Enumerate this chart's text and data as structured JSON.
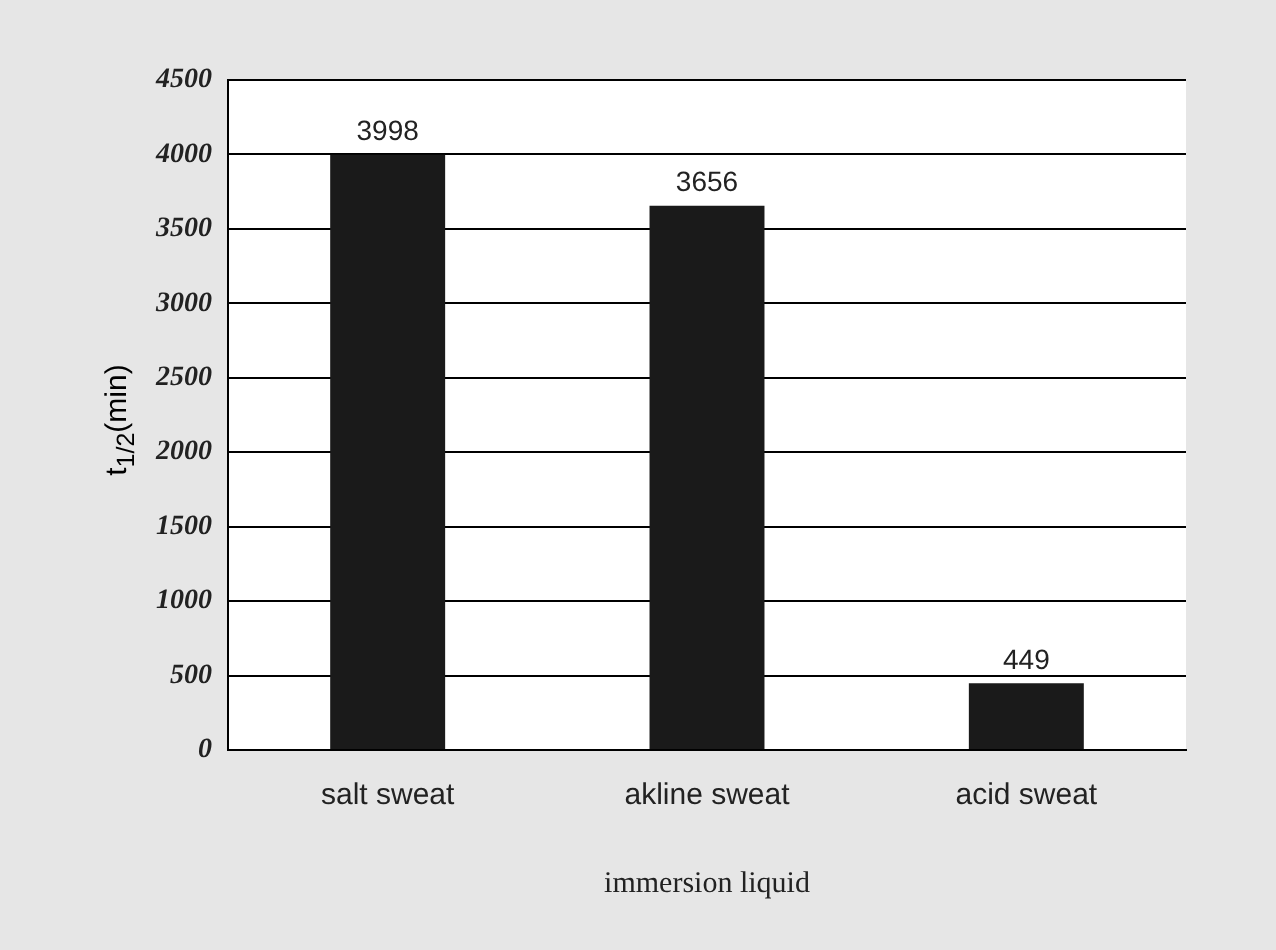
{
  "chart_data": {
    "type": "bar",
    "xlabel": "immersion liquid",
    "ylabel": "t$_{1/2}$(min)",
    "categories": [
      "salt sweat",
      "akline sweat",
      "acid sweat"
    ],
    "values": [
      3998,
      3656,
      449
    ],
    "color": "#1a1a1a",
    "ylim": [
      0,
      4500
    ],
    "yticks": [
      0,
      500,
      1000,
      1500,
      2000,
      2500,
      3000,
      3500,
      4000,
      4500
    ],
    "grid": "y",
    "data_labels": true
  }
}
